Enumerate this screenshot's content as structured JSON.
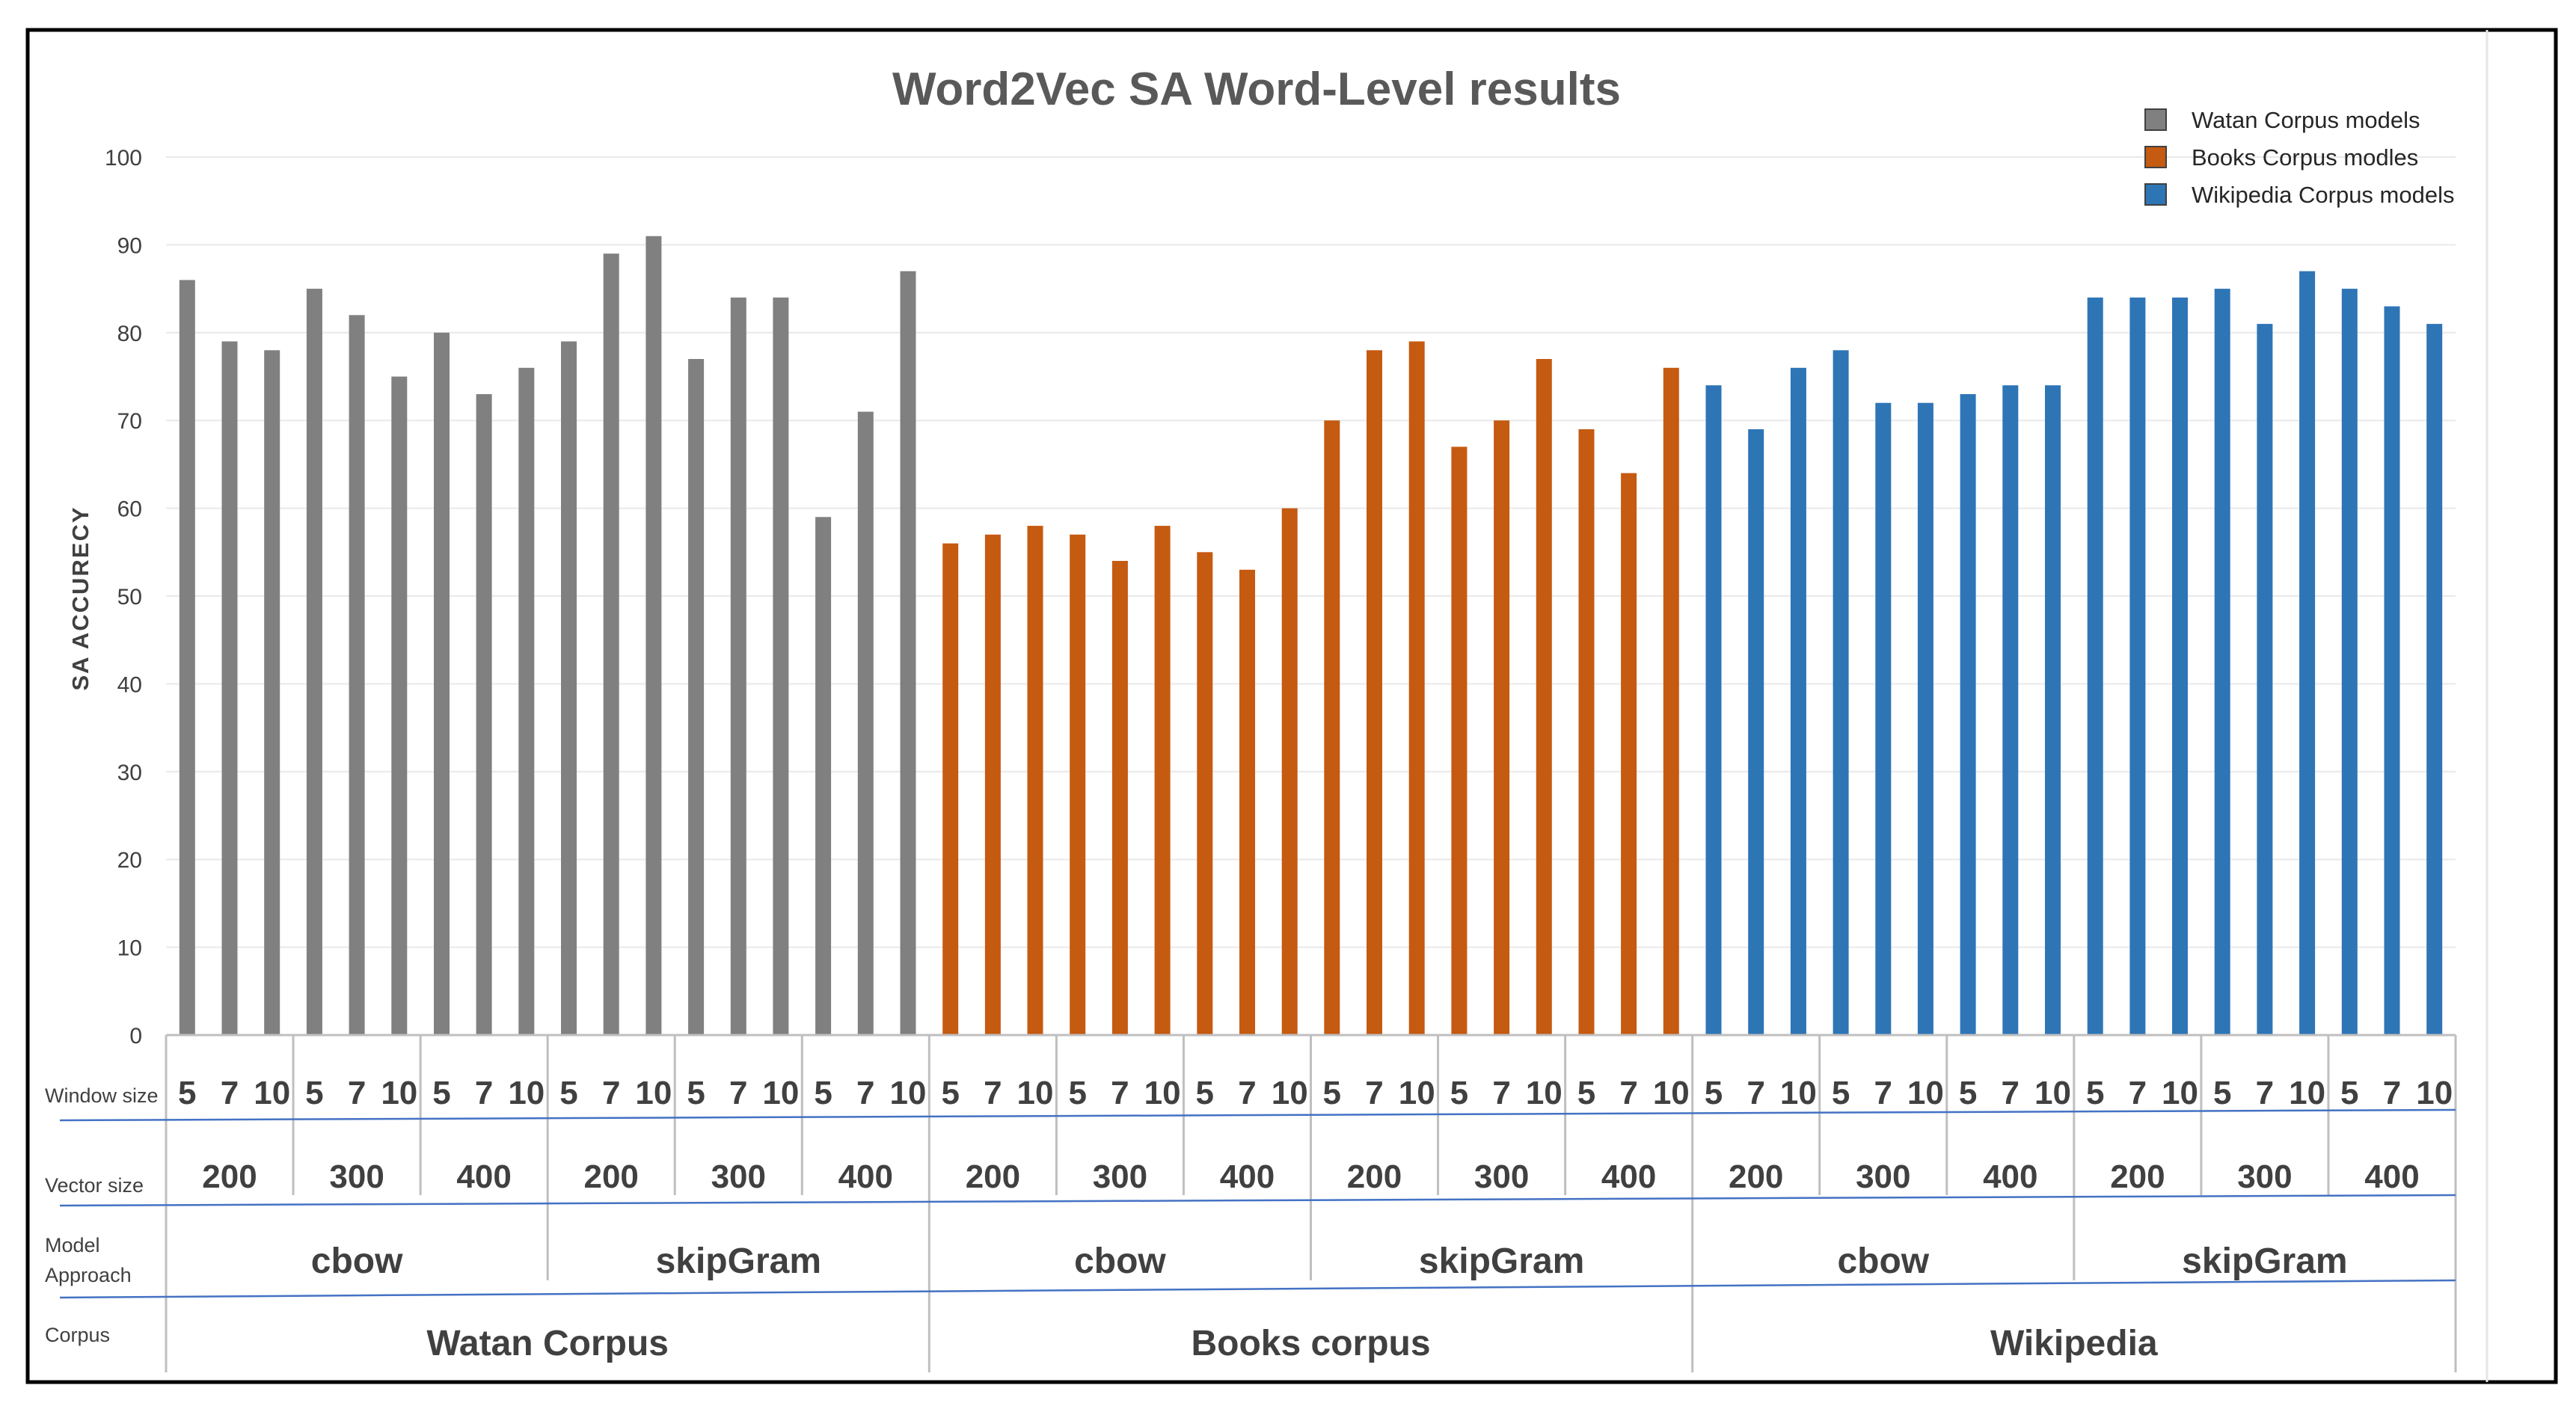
{
  "chart_data": {
    "type": "bar",
    "title": "Word2Vec SA Word-Level results",
    "ylabel": "SA  ACCURECY",
    "ylim": [
      0,
      100
    ],
    "yticks": [
      "0",
      "10",
      "20",
      "30",
      "40",
      "50",
      "60",
      "70",
      "80",
      "90",
      "100"
    ],
    "grid": true,
    "legend_position": "top-right",
    "row_labels": {
      "window": "Window size",
      "vector": "Vector size",
      "model_line1": "Model",
      "model_line2": "Approach",
      "corpus": "Corpus"
    },
    "window_sizes": [
      "5",
      "7",
      "10"
    ],
    "vector_sizes": [
      "200",
      "300",
      "400"
    ],
    "model_approaches": [
      "cbow",
      "skipGram"
    ],
    "series": [
      {
        "name": "Watan Corpus models",
        "corpus": "Watan  Corpus",
        "color": "#808080",
        "values": [
          86,
          79,
          78,
          85,
          82,
          75,
          80,
          73,
          76,
          79,
          89,
          91,
          77,
          84,
          84,
          59,
          71,
          87
        ]
      },
      {
        "name": "Books Corpus modles",
        "corpus": "Books corpus",
        "color": "#C55A11",
        "values": [
          56,
          57,
          58,
          57,
          54,
          58,
          55,
          53,
          60,
          70,
          78,
          79,
          67,
          70,
          77,
          69,
          64,
          76
        ]
      },
      {
        "name": "Wikipedia Corpus models",
        "corpus": "Wikipedia",
        "color": "#2E75B6",
        "values": [
          74,
          69,
          76,
          78,
          72,
          72,
          73,
          74,
          74,
          84,
          84,
          84,
          85,
          81,
          87,
          85,
          83,
          81
        ]
      }
    ]
  }
}
